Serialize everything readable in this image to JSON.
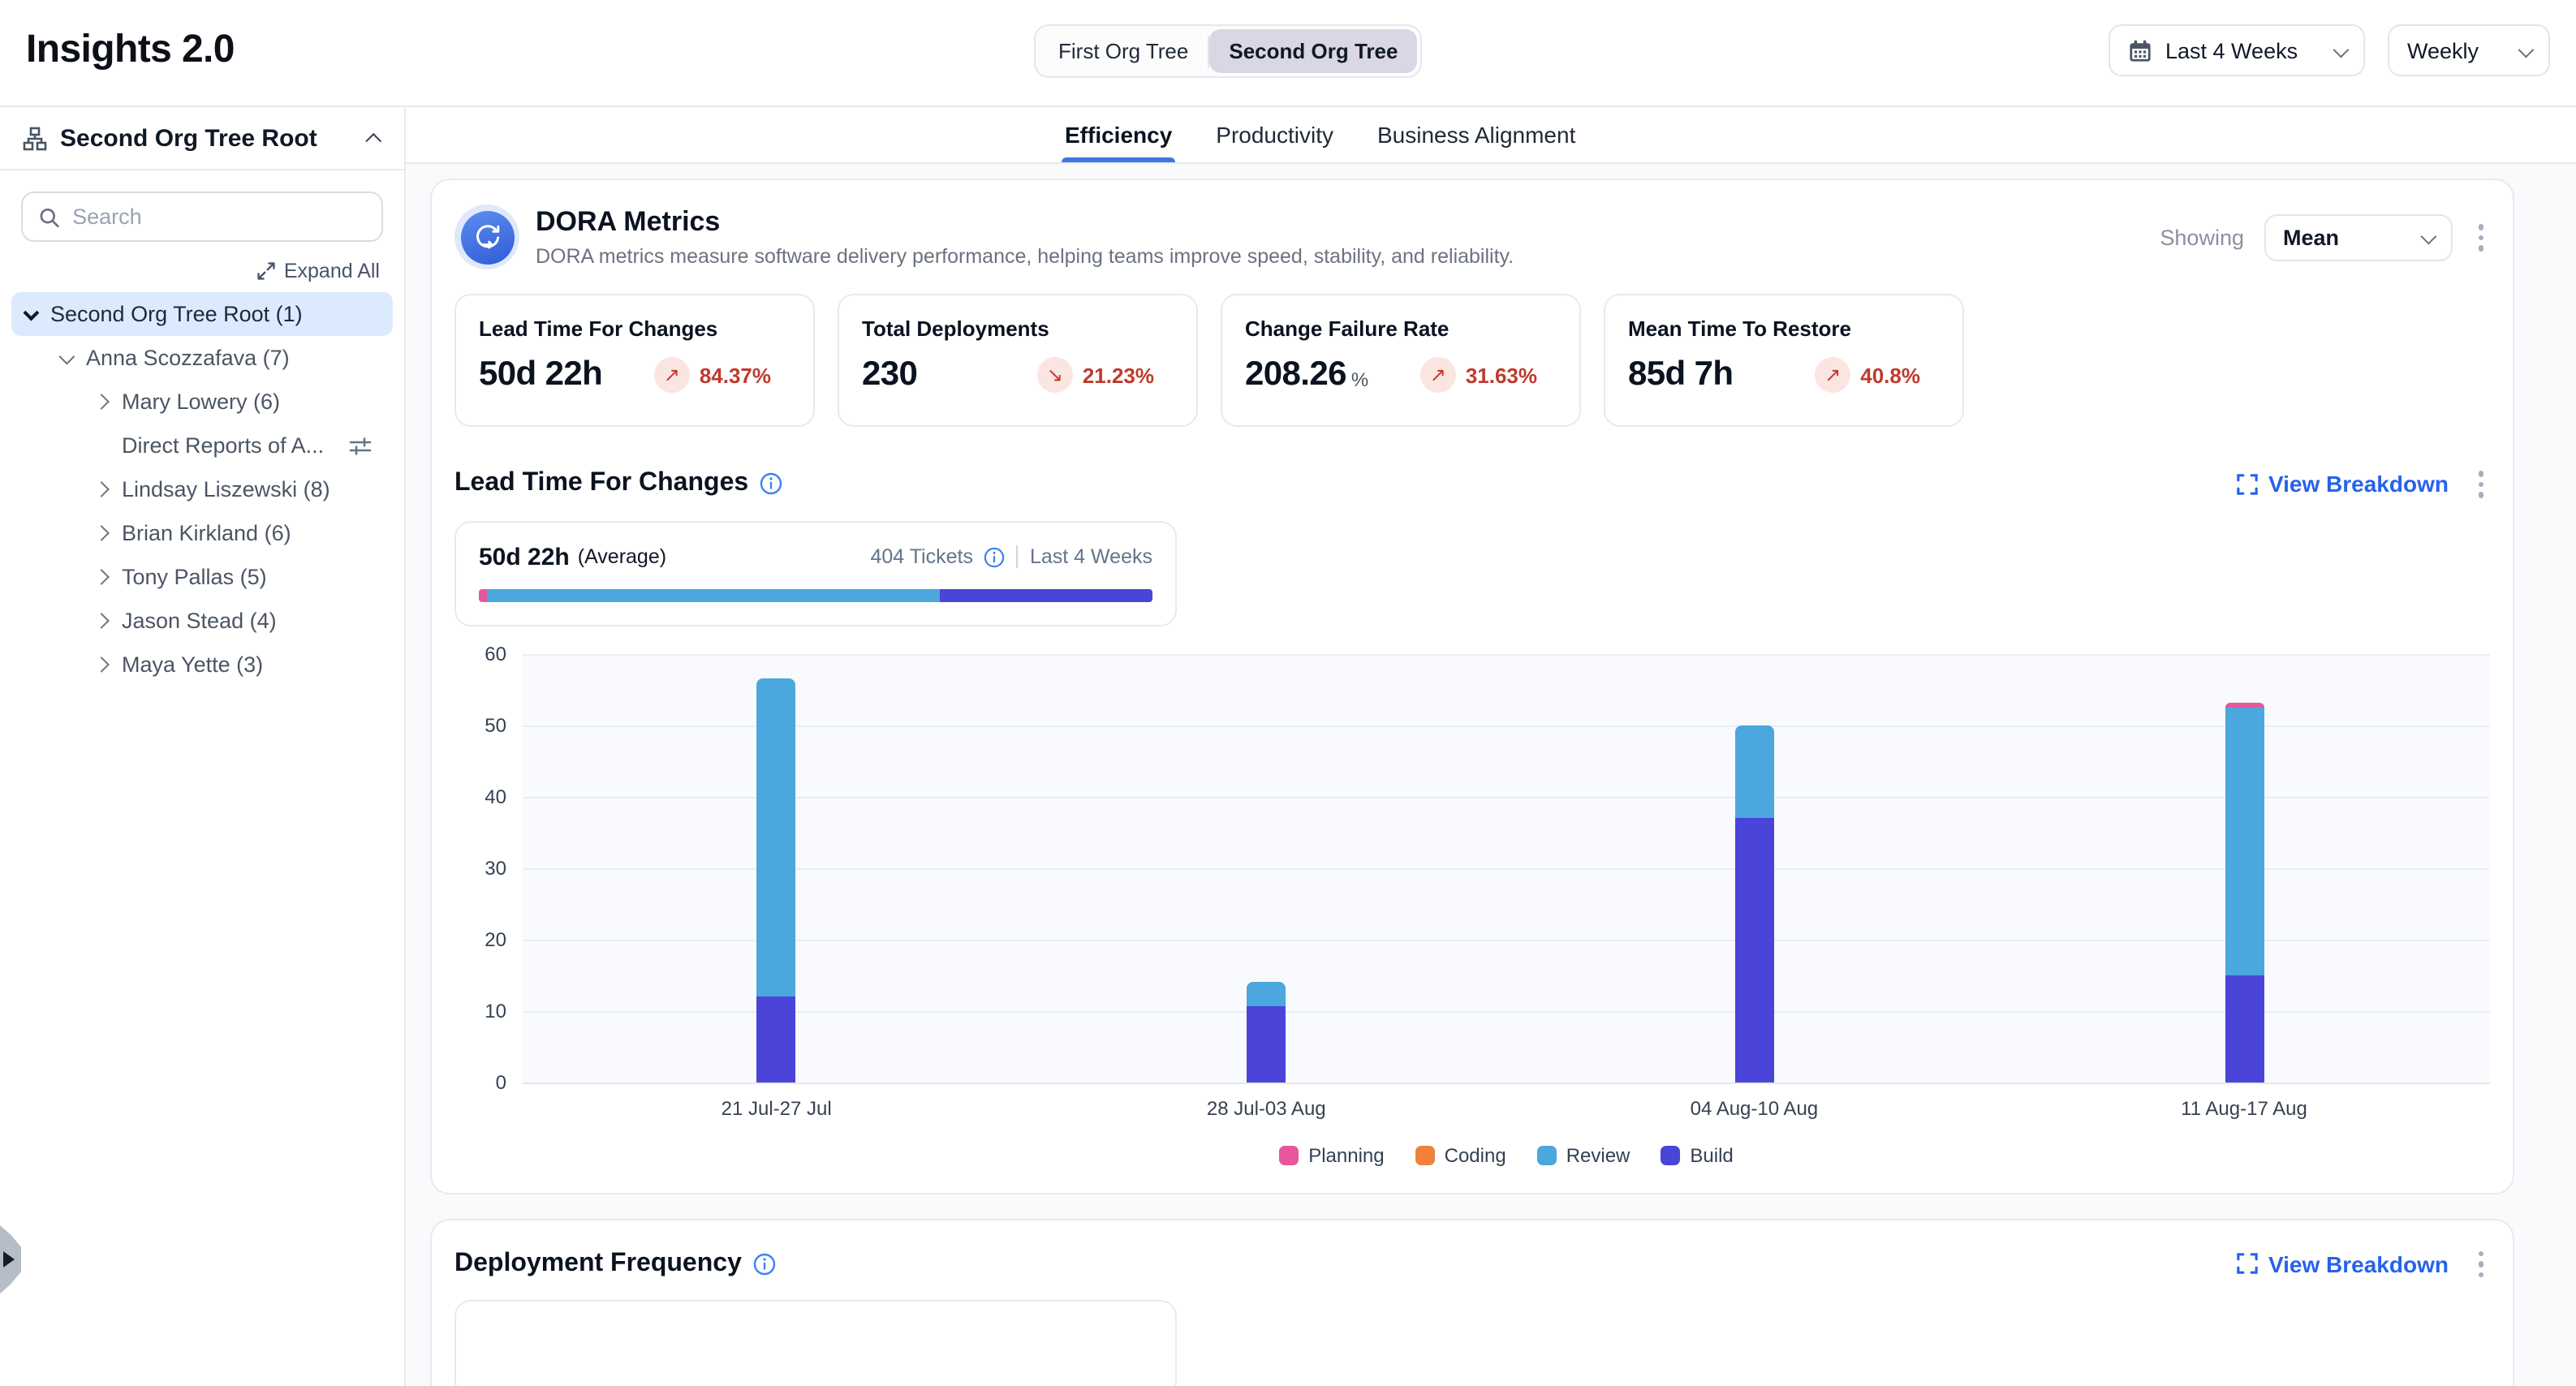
{
  "header": {
    "app_title": "Insights 2.0",
    "org_toggle": {
      "options": [
        "First Org Tree",
        "Second Org Tree"
      ],
      "active": "Second Org Tree"
    },
    "date_range": "Last 4 Weeks",
    "granularity": "Weekly"
  },
  "sidebar": {
    "root_title": "Second Org Tree Root",
    "search_placeholder": "Search",
    "expand_all": "Expand All",
    "tree": [
      {
        "label": "Second Org Tree Root (1)",
        "level": 0,
        "chevron": "down",
        "selected": true
      },
      {
        "label": "Anna Scozzafava (7)",
        "level": 1,
        "chevron": "down",
        "selected": false
      },
      {
        "label": "Mary Lowery (6)",
        "level": 2,
        "chevron": "right",
        "selected": false
      },
      {
        "label": "Direct Reports of A...",
        "level": 2,
        "chevron": "none",
        "selected": false,
        "trailing_icon": "sliders-icon"
      },
      {
        "label": "Lindsay Liszewski (8)",
        "level": 2,
        "chevron": "right",
        "selected": false
      },
      {
        "label": "Brian Kirkland (6)",
        "level": 2,
        "chevron": "right",
        "selected": false
      },
      {
        "label": "Tony Pallas (5)",
        "level": 2,
        "chevron": "right",
        "selected": false
      },
      {
        "label": "Jason Stead (4)",
        "level": 2,
        "chevron": "right",
        "selected": false
      },
      {
        "label": "Maya Yette (3)",
        "level": 2,
        "chevron": "right",
        "selected": false
      }
    ]
  },
  "tabs": [
    {
      "label": "Efficiency",
      "active": true
    },
    {
      "label": "Productivity",
      "active": false
    },
    {
      "label": "Business Alignment",
      "active": false
    }
  ],
  "dora": {
    "title": "DORA Metrics",
    "subtitle": "DORA metrics measure software delivery performance, helping teams improve speed, stability, and reliability.",
    "showing_label": "Showing",
    "showing_value": "Mean",
    "stats": [
      {
        "title": "Lead Time For Changes",
        "value": "50d 22h",
        "suffix": "",
        "delta": "84.37%",
        "direction": "up"
      },
      {
        "title": "Total Deployments",
        "value": "230",
        "suffix": "",
        "delta": "21.23%",
        "direction": "down"
      },
      {
        "title": "Change Failure Rate",
        "value": "208.26",
        "suffix": "%",
        "delta": "31.63%",
        "direction": "up"
      },
      {
        "title": "Mean Time To Restore",
        "value": "85d 7h",
        "suffix": "",
        "delta": "40.8%",
        "direction": "up"
      }
    ]
  },
  "lead_time": {
    "section_title": "Lead Time For Changes",
    "view_breakdown": "View Breakdown",
    "average_value": "50d 22h",
    "average_label": "(Average)",
    "tickets": "404 Tickets",
    "range_label": "Last 4 Weeks",
    "distribution": [
      {
        "name": "Planning",
        "pct": 1.2
      },
      {
        "name": "Review",
        "pct": 67.3
      },
      {
        "name": "Build",
        "pct": 31.5
      }
    ]
  },
  "chart_data": {
    "type": "bar",
    "stacked": true,
    "title": "Lead Time For Changes",
    "categories": [
      "21 Jul-27 Jul",
      "28 Jul-03 Aug",
      "04 Aug-10 Aug",
      "11 Aug-17 Aug"
    ],
    "series": [
      {
        "name": "Planning",
        "color": "#e8569d",
        "values": [
          0,
          0,
          0,
          0.7
        ]
      },
      {
        "name": "Coding",
        "color": "#ef813a",
        "values": [
          0,
          0,
          0,
          0
        ]
      },
      {
        "name": "Review",
        "color": "#4ba7de",
        "values": [
          44.5,
          3.5,
          13,
          37.3
        ]
      },
      {
        "name": "Build",
        "color": "#4a44d9",
        "values": [
          12,
          10.5,
          37,
          15
        ]
      }
    ],
    "ylim": [
      0,
      60
    ],
    "yticks": [
      0,
      10,
      20,
      30,
      40,
      50,
      60
    ],
    "grid": true,
    "legend_position": "bottom"
  },
  "deployment": {
    "section_title": "Deployment Frequency",
    "view_breakdown": "View Breakdown"
  },
  "colors": {
    "accent_blue": "#3b77e0",
    "link_blue": "#2563eb",
    "negative_red": "#bf3a2e",
    "selected_row": "#dbeafd"
  }
}
